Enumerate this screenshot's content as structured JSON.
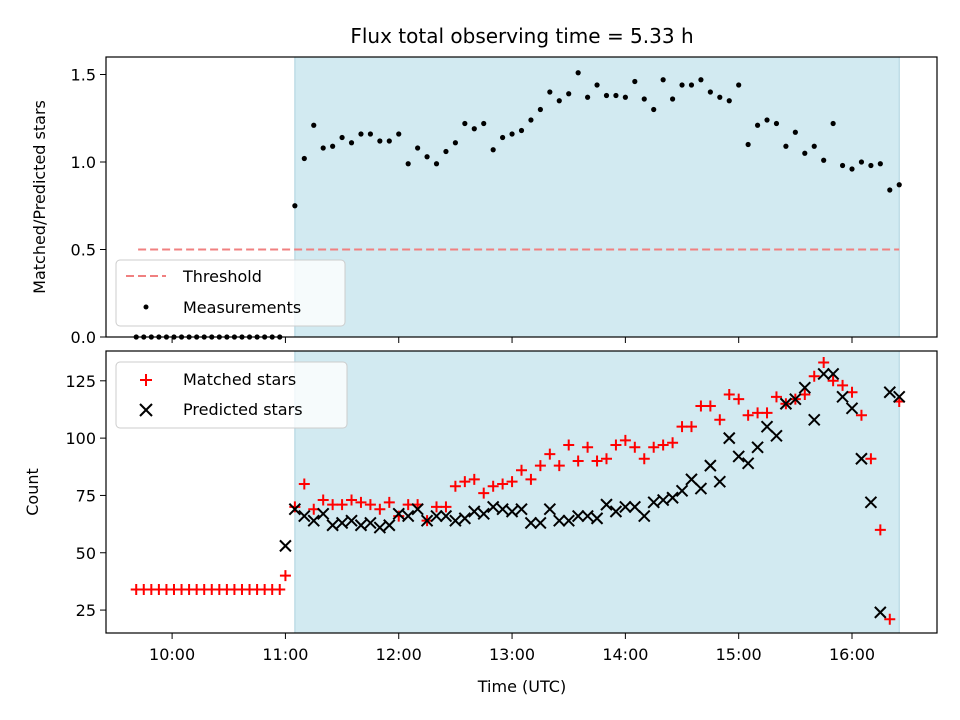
{
  "chart_data": [
    {
      "type": "scatter",
      "title": "Flux total observing time = 5.33 h",
      "ylabel": "Matched/Predicted stars",
      "xlabel": "",
      "xlim": [
        "09:25",
        "16:45"
      ],
      "ylim": [
        0,
        1.6
      ],
      "yticks": [
        0.0,
        0.5,
        1.0,
        1.5
      ],
      "ytick_labels": [
        "0.0",
        "0.5",
        "1.0",
        "1.5"
      ],
      "xtick_values": [
        "10:00",
        "11:00",
        "12:00",
        "13:00",
        "14:00",
        "15:00",
        "16:00"
      ],
      "xtick_labels": [],
      "grid": false,
      "legend_position": "lower-left",
      "shaded_region": {
        "x_start": "11:05",
        "x_end": "16:25",
        "color": "#add8e6"
      },
      "threshold": {
        "name": "Threshold",
        "value": 0.5,
        "x_start": "09:42",
        "x_end": "16:25",
        "color": "#f08080",
        "style": "dashed"
      },
      "series": [
        {
          "name": "Measurements",
          "color": "#000000",
          "marker": "dot",
          "x": [
            "09:41",
            "09:45",
            "09:49",
            "09:53",
            "09:57",
            "10:01",
            "10:05",
            "10:09",
            "10:13",
            "10:17",
            "10:21",
            "10:25",
            "10:29",
            "10:33",
            "10:37",
            "10:41",
            "10:45",
            "10:49",
            "10:53",
            "10:57",
            "11:05",
            "11:10",
            "11:15",
            "11:20",
            "11:25",
            "11:30",
            "11:35",
            "11:40",
            "11:45",
            "11:50",
            "11:55",
            "12:00",
            "12:05",
            "12:10",
            "12:15",
            "12:20",
            "12:25",
            "12:30",
            "12:35",
            "12:40",
            "12:45",
            "12:50",
            "12:55",
            "13:00",
            "13:05",
            "13:10",
            "13:15",
            "13:20",
            "13:25",
            "13:30",
            "13:35",
            "13:40",
            "13:45",
            "13:50",
            "13:55",
            "14:00",
            "14:05",
            "14:10",
            "14:15",
            "14:20",
            "14:25",
            "14:30",
            "14:35",
            "14:40",
            "14:45",
            "14:50",
            "14:55",
            "15:00",
            "15:05",
            "15:10",
            "15:15",
            "15:20",
            "15:25",
            "15:30",
            "15:35",
            "15:40",
            "15:45",
            "15:50",
            "15:55",
            "16:00",
            "16:05",
            "16:10",
            "16:15",
            "16:20",
            "16:25"
          ],
          "y": [
            0,
            0,
            0,
            0,
            0,
            0,
            0,
            0,
            0,
            0,
            0,
            0,
            0,
            0,
            0,
            0,
            0,
            0,
            0,
            0,
            0.75,
            1.02,
            1.21,
            1.08,
            1.09,
            1.14,
            1.11,
            1.16,
            1.16,
            1.12,
            1.12,
            1.16,
            0.99,
            1.08,
            1.03,
            0.99,
            1.06,
            1.11,
            1.22,
            1.19,
            1.22,
            1.07,
            1.14,
            1.16,
            1.18,
            1.24,
            1.3,
            1.4,
            1.35,
            1.39,
            1.51,
            1.37,
            1.44,
            1.38,
            1.38,
            1.37,
            1.46,
            1.36,
            1.3,
            1.47,
            1.36,
            1.44,
            1.44,
            1.47,
            1.4,
            1.37,
            1.35,
            1.44,
            1.1,
            1.21,
            1.24,
            1.22,
            1.09,
            1.17,
            1.05,
            1.09,
            1.01,
            1.22,
            0.98,
            0.96,
            1.0,
            0.98,
            0.99,
            0.84,
            0.87
          ]
        }
      ]
    },
    {
      "type": "scatter",
      "title": "",
      "ylabel": "Count",
      "xlabel": "Time (UTC)",
      "xlim": [
        "09:25",
        "16:45"
      ],
      "ylim": [
        15,
        138
      ],
      "yticks": [
        25,
        50,
        75,
        100,
        125
      ],
      "ytick_labels": [
        "25",
        "50",
        "75",
        "100",
        "125"
      ],
      "xtick_values": [
        "10:00",
        "11:00",
        "12:00",
        "13:00",
        "14:00",
        "15:00",
        "16:00"
      ],
      "xtick_labels": [
        "10:00",
        "11:00",
        "12:00",
        "13:00",
        "14:00",
        "15:00",
        "16:00"
      ],
      "grid": false,
      "legend_position": "upper-left",
      "shaded_region": {
        "x_start": "11:05",
        "x_end": "16:25",
        "color": "#add8e6"
      },
      "series": [
        {
          "name": "Matched stars",
          "color": "#ff0000",
          "marker": "plus",
          "x": [
            "09:41",
            "09:45",
            "09:49",
            "09:53",
            "09:57",
            "10:01",
            "10:05",
            "10:09",
            "10:13",
            "10:17",
            "10:21",
            "10:25",
            "10:29",
            "10:33",
            "10:37",
            "10:41",
            "10:45",
            "10:49",
            "10:53",
            "10:57",
            "11:00",
            "11:05",
            "11:10",
            "11:15",
            "11:20",
            "11:25",
            "11:30",
            "11:35",
            "11:40",
            "11:45",
            "11:50",
            "11:55",
            "12:00",
            "12:05",
            "12:10",
            "12:15",
            "12:20",
            "12:25",
            "12:30",
            "12:35",
            "12:40",
            "12:45",
            "12:50",
            "12:55",
            "13:00",
            "13:05",
            "13:10",
            "13:15",
            "13:20",
            "13:25",
            "13:30",
            "13:35",
            "13:40",
            "13:45",
            "13:50",
            "13:55",
            "14:00",
            "14:05",
            "14:10",
            "14:15",
            "14:20",
            "14:25",
            "14:30",
            "14:35",
            "14:40",
            "14:45",
            "14:50",
            "14:55",
            "15:00",
            "15:05",
            "15:10",
            "15:15",
            "15:20",
            "15:25",
            "15:30",
            "15:35",
            "15:40",
            "15:45",
            "15:50",
            "15:55",
            "16:00",
            "16:05",
            "16:10",
            "16:15",
            "16:20",
            "16:25"
          ],
          "y": [
            34,
            34,
            34,
            34,
            34,
            34,
            34,
            34,
            34,
            34,
            34,
            34,
            34,
            34,
            34,
            34,
            34,
            34,
            34,
            34,
            40,
            70,
            80,
            69,
            73,
            71,
            71,
            73,
            72,
            71,
            69,
            72,
            66,
            71,
            71,
            64,
            70,
            70,
            79,
            81,
            82,
            76,
            79,
            80,
            81,
            86,
            82,
            88,
            93,
            88,
            97,
            90,
            96,
            90,
            91,
            97,
            99,
            96,
            91,
            96,
            97,
            98,
            105,
            105,
            114,
            114,
            108,
            119,
            117,
            110,
            111,
            111,
            118,
            115,
            117,
            119,
            127,
            133,
            125,
            123,
            120,
            110,
            91,
            60,
            21,
            116
          ]
        },
        {
          "name": "Predicted stars",
          "color": "#000000",
          "marker": "x",
          "x": [
            "11:00",
            "11:05",
            "11:10",
            "11:15",
            "11:20",
            "11:25",
            "11:30",
            "11:35",
            "11:40",
            "11:45",
            "11:50",
            "11:55",
            "12:00",
            "12:05",
            "12:10",
            "12:15",
            "12:20",
            "12:25",
            "12:30",
            "12:35",
            "12:40",
            "12:45",
            "12:50",
            "12:55",
            "13:00",
            "13:05",
            "13:10",
            "13:15",
            "13:20",
            "13:25",
            "13:30",
            "13:35",
            "13:40",
            "13:45",
            "13:50",
            "13:55",
            "14:00",
            "14:05",
            "14:10",
            "14:15",
            "14:20",
            "14:25",
            "14:30",
            "14:35",
            "14:40",
            "14:45",
            "14:50",
            "14:55",
            "15:00",
            "15:05",
            "15:10",
            "15:15",
            "15:20",
            "15:25",
            "15:30",
            "15:35",
            "15:40",
            "15:45",
            "15:50",
            "15:55",
            "16:00",
            "16:05",
            "16:10",
            "16:15",
            "16:20",
            "16:25"
          ],
          "y": [
            53,
            69,
            66,
            64,
            67,
            62,
            63,
            64,
            62,
            63,
            61,
            62,
            67,
            66,
            69,
            64,
            66,
            66,
            64,
            65,
            68,
            67,
            70,
            69,
            68,
            69,
            63,
            63,
            69,
            64,
            64,
            66,
            66,
            65,
            71,
            68,
            70,
            70,
            66,
            72,
            73,
            74,
            77,
            82,
            78,
            88,
            81,
            100,
            92,
            89,
            96,
            105,
            101,
            115,
            117,
            122,
            108,
            128,
            128,
            118,
            113,
            91,
            72,
            24,
            120,
            118
          ]
        }
      ]
    }
  ]
}
